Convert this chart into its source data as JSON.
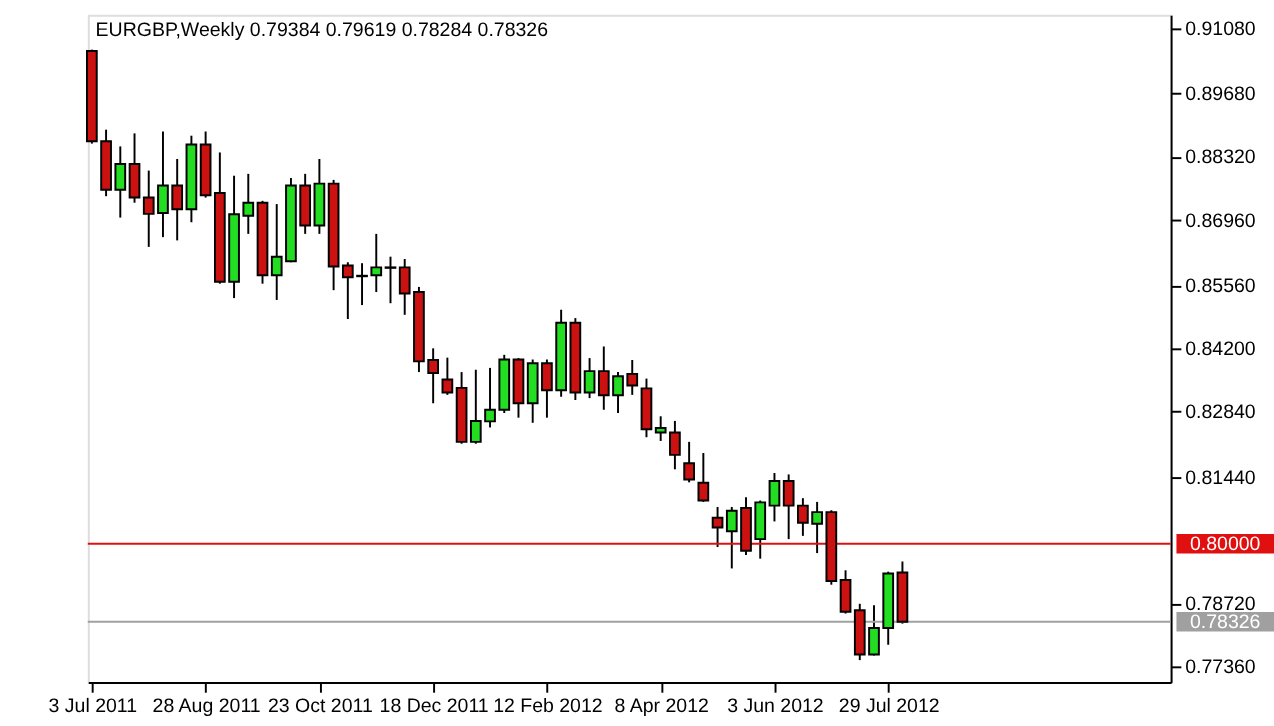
{
  "chart_data": {
    "type": "candlestick",
    "title": "EURGBP,Weekly  0.79384 0.79619 0.78284 0.78326",
    "x": [
      "2011-07-03",
      "2011-07-10",
      "2011-07-17",
      "2011-07-24",
      "2011-07-31",
      "2011-08-07",
      "2011-08-14",
      "2011-08-21",
      "2011-08-28",
      "2011-09-04",
      "2011-09-11",
      "2011-09-18",
      "2011-09-25",
      "2011-10-02",
      "2011-10-09",
      "2011-10-16",
      "2011-10-23",
      "2011-10-30",
      "2011-11-06",
      "2011-11-13",
      "2011-11-20",
      "2011-11-27",
      "2011-12-04",
      "2011-12-11",
      "2011-12-18",
      "2011-12-25",
      "2012-01-01",
      "2012-01-08",
      "2012-01-15",
      "2012-01-22",
      "2012-01-29",
      "2012-02-05",
      "2012-02-12",
      "2012-02-19",
      "2012-02-26",
      "2012-03-04",
      "2012-03-11",
      "2012-03-18",
      "2012-03-25",
      "2012-04-01",
      "2012-04-08",
      "2012-04-15",
      "2012-04-22",
      "2012-04-29",
      "2012-05-06",
      "2012-05-13",
      "2012-05-20",
      "2012-05-27",
      "2012-06-03",
      "2012-06-10",
      "2012-06-17",
      "2012-06-24",
      "2012-07-01",
      "2012-07-08",
      "2012-07-15",
      "2012-07-22",
      "2012-07-29",
      "2012-08-05"
    ],
    "ohlc": [
      [
        0.9059,
        0.9062,
        0.886,
        0.8865
      ],
      [
        0.8865,
        0.889,
        0.8747,
        0.8761
      ],
      [
        0.8761,
        0.8854,
        0.8701,
        0.8816
      ],
      [
        0.8816,
        0.8882,
        0.8733,
        0.8744
      ],
      [
        0.8744,
        0.8802,
        0.8638,
        0.8709
      ],
      [
        0.8711,
        0.8886,
        0.8659,
        0.877
      ],
      [
        0.877,
        0.8827,
        0.8652,
        0.8719
      ],
      [
        0.8719,
        0.8877,
        0.8691,
        0.8858
      ],
      [
        0.8858,
        0.8886,
        0.8744,
        0.8749
      ],
      [
        0.8754,
        0.8841,
        0.8559,
        0.8563
      ],
      [
        0.8563,
        0.8791,
        0.8528,
        0.8708
      ],
      [
        0.8705,
        0.8795,
        0.8666,
        0.8733
      ],
      [
        0.8733,
        0.8737,
        0.8559,
        0.8577
      ],
      [
        0.8577,
        0.873,
        0.8524,
        0.8617
      ],
      [
        0.8607,
        0.8786,
        0.8605,
        0.877
      ],
      [
        0.877,
        0.8795,
        0.8666,
        0.8684
      ],
      [
        0.8684,
        0.8827,
        0.8666,
        0.8774
      ],
      [
        0.8774,
        0.8782,
        0.8545,
        0.8596
      ],
      [
        0.8598,
        0.8605,
        0.8483,
        0.8573
      ],
      [
        0.8575,
        0.8603,
        0.8513,
        0.8576
      ],
      [
        0.8577,
        0.8666,
        0.8541,
        0.8594
      ],
      [
        0.8593,
        0.8617,
        0.8517,
        0.8594
      ],
      [
        0.8594,
        0.8612,
        0.8492,
        0.8538
      ],
      [
        0.8541,
        0.8552,
        0.8369,
        0.8392
      ],
      [
        0.8395,
        0.842,
        0.8302,
        0.8367
      ],
      [
        0.8353,
        0.84,
        0.832,
        0.8325
      ],
      [
        0.8335,
        0.8369,
        0.8215,
        0.8219
      ],
      [
        0.8219,
        0.8374,
        0.8215,
        0.8264
      ],
      [
        0.8263,
        0.8378,
        0.825,
        0.8288
      ],
      [
        0.8288,
        0.8406,
        0.8281,
        0.8396
      ],
      [
        0.8396,
        0.8399,
        0.8271,
        0.8302
      ],
      [
        0.8302,
        0.8396,
        0.826,
        0.8388
      ],
      [
        0.8388,
        0.8396,
        0.8271,
        0.833
      ],
      [
        0.833,
        0.8503,
        0.8316,
        0.8475
      ],
      [
        0.8475,
        0.8485,
        0.8309,
        0.8325
      ],
      [
        0.8325,
        0.8399,
        0.8313,
        0.8371
      ],
      [
        0.8371,
        0.8424,
        0.8288,
        0.8319
      ],
      [
        0.8319,
        0.8369,
        0.8281,
        0.836
      ],
      [
        0.8365,
        0.8395,
        0.832,
        0.834
      ],
      [
        0.8334,
        0.8355,
        0.8229,
        0.8246
      ],
      [
        0.8239,
        0.8274,
        0.8221,
        0.8249
      ],
      [
        0.8239,
        0.8264,
        0.816,
        0.8191
      ],
      [
        0.8173,
        0.8219,
        0.8132,
        0.8138
      ],
      [
        0.8131,
        0.8195,
        0.809,
        0.8093
      ],
      [
        0.8056,
        0.8079,
        0.7993,
        0.8035
      ],
      [
        0.8027,
        0.8079,
        0.7947,
        0.8071
      ],
      [
        0.8077,
        0.81,
        0.7976,
        0.7985
      ],
      [
        0.801,
        0.8093,
        0.7968,
        0.8089
      ],
      [
        0.8082,
        0.8152,
        0.8048,
        0.8135
      ],
      [
        0.8135,
        0.8149,
        0.801,
        0.8082
      ],
      [
        0.8082,
        0.8098,
        0.8017,
        0.8045
      ],
      [
        0.8043,
        0.809,
        0.798,
        0.8068
      ],
      [
        0.8068,
        0.8072,
        0.7912,
        0.792
      ],
      [
        0.7922,
        0.7943,
        0.785,
        0.7854
      ],
      [
        0.7857,
        0.7871,
        0.775,
        0.7762
      ],
      [
        0.7762,
        0.7868,
        0.776,
        0.7819
      ],
      [
        0.7819,
        0.794,
        0.7783,
        0.7936
      ],
      [
        0.79384,
        0.79619,
        0.78284,
        0.78326
      ]
    ],
    "colors": [
      "#cc1111",
      "#cc1111",
      "#22dd22",
      "#cc1111",
      "#cc1111",
      "#22dd22",
      "#cc1111",
      "#22dd22",
      "#cc1111",
      "#cc1111",
      "#22dd22",
      "#22dd22",
      "#cc1111",
      "#22dd22",
      "#22dd22",
      "#cc1111",
      "#22dd22",
      "#cc1111",
      "#cc1111",
      "#22dd22",
      "#22dd22",
      "#22dd22",
      "#cc1111",
      "#cc1111",
      "#cc1111",
      "#cc1111",
      "#cc1111",
      "#22dd22",
      "#22dd22",
      "#22dd22",
      "#cc1111",
      "#22dd22",
      "#cc1111",
      "#22dd22",
      "#cc1111",
      "#22dd22",
      "#cc1111",
      "#22dd22",
      "#cc1111",
      "#cc1111",
      "#22dd22",
      "#cc1111",
      "#cc1111",
      "#cc1111",
      "#cc1111",
      "#22dd22",
      "#cc1111",
      "#22dd22",
      "#22dd22",
      "#cc1111",
      "#cc1111",
      "#22dd22",
      "#cc1111",
      "#cc1111",
      "#cc1111",
      "#22dd22",
      "#22dd22",
      "#cc1111"
    ],
    "xlim": [
      "2011-07-01",
      "2012-12-15"
    ],
    "xticks": [
      {
        "value": "2011-07-03",
        "label": "3 Jul 2011"
      },
      {
        "value": "2011-08-28",
        "label": "28 Aug 2011"
      },
      {
        "value": "2011-10-23",
        "label": "23 Oct 2011"
      },
      {
        "value": "2011-12-18",
        "label": "18 Dec 2011"
      },
      {
        "value": "2012-02-12",
        "label": "12 Feb 2012"
      },
      {
        "value": "2012-04-08",
        "label": "8 Apr 2012"
      },
      {
        "value": "2012-06-03",
        "label": "3 Jun 2012"
      },
      {
        "value": "2012-07-29",
        "label": "29 Jul 2012"
      }
    ],
    "ylim": [
      0.7703,
      0.9137
    ],
    "yticks": [
      {
        "value": 0.9108,
        "label": "0.91080"
      },
      {
        "value": 0.8968,
        "label": "0.89680"
      },
      {
        "value": 0.8832,
        "label": "0.88320"
      },
      {
        "value": 0.8696,
        "label": "0.86960"
      },
      {
        "value": 0.8556,
        "label": "0.85560"
      },
      {
        "value": 0.842,
        "label": "0.84200"
      },
      {
        "value": 0.8284,
        "label": "0.82840"
      },
      {
        "value": 0.8144,
        "label": "0.81440"
      },
      {
        "value": 0.7872,
        "label": "0.78720"
      },
      {
        "value": 0.7736,
        "label": "0.77360"
      }
    ],
    "ref_lines": [
      {
        "axis": "y",
        "value": 0.8,
        "label": "0.80000",
        "color": "#e01010"
      },
      {
        "axis": "y",
        "value": 0.78326,
        "label": "0.78326",
        "color": "#a0a0a0"
      }
    ],
    "grid": false
  }
}
